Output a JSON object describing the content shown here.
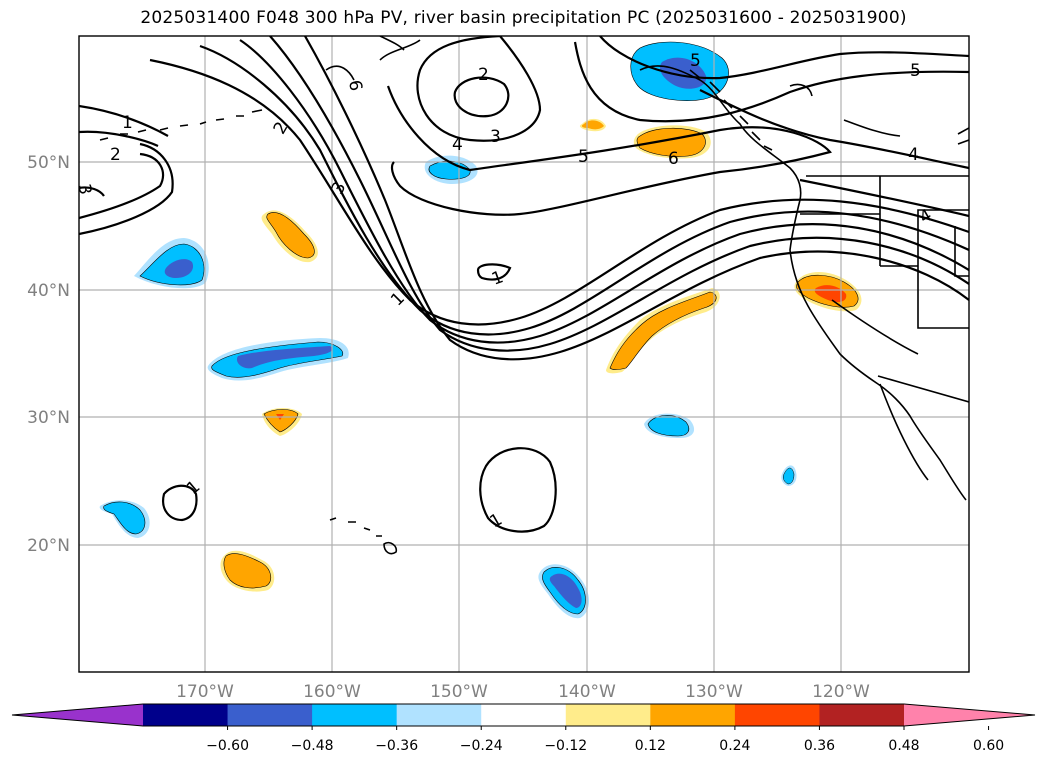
{
  "title": "2025031400 F048 300 hPa PV, river basin precipitation PC (2025031600 - 2025031900)",
  "map": {
    "lat_ticks": [
      "50°N",
      "40°N",
      "30°N",
      "20°N"
    ],
    "lon_ticks": [
      "170°W",
      "160°W",
      "150°W",
      "140°W",
      "130°W",
      "120°W"
    ],
    "contour_labels": [
      "1",
      "2",
      "3",
      "4",
      "5",
      "6"
    ],
    "colors": {
      "neg_060": "#9932CC",
      "neg_048": "#00008B",
      "neg_036": "#3A5FCD",
      "neg_024": "#00BFFF",
      "neg_012": "#B0E2FF",
      "neutral": "#FFFFFF",
      "pos_012": "#FFEC8B",
      "pos_024": "#FFA500",
      "pos_036": "#FF4500",
      "pos_048": "#B22222",
      "pos_060": "#FF82AB"
    }
  },
  "colorbar": {
    "ticks": [
      "−0.60",
      "−0.48",
      "−0.36",
      "−0.24",
      "−0.12",
      "0.12",
      "0.24",
      "0.36",
      "0.48",
      "0.60"
    ],
    "colors": [
      "#9932CC",
      "#00008B",
      "#3A5FCD",
      "#00BFFF",
      "#B0E2FF",
      "#FFFFFF",
      "#FFEC8B",
      "#FFA500",
      "#FF4500",
      "#B22222",
      "#FF82AB"
    ]
  }
}
